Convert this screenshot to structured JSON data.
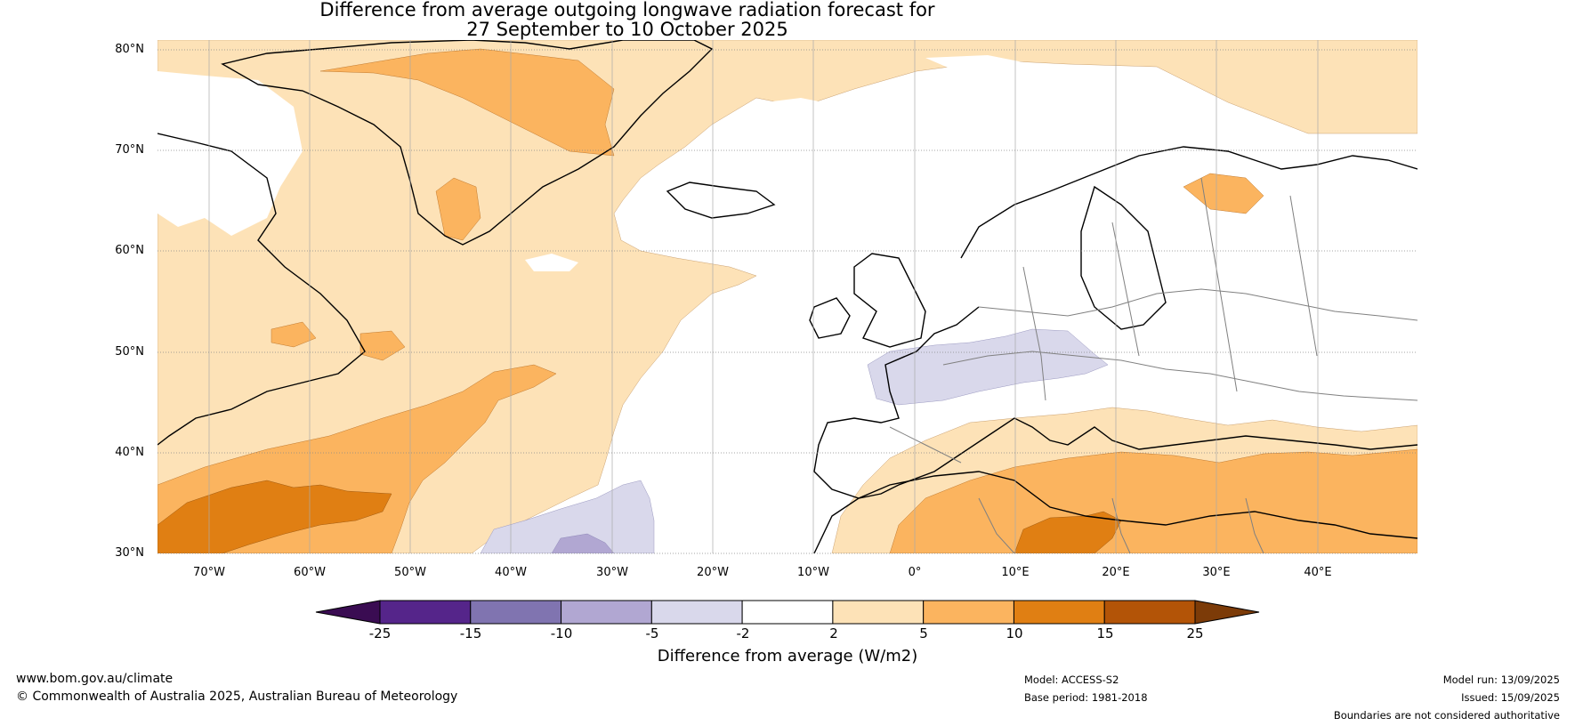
{
  "title": {
    "line1": "Difference from average outgoing longwave radiation forecast for",
    "line2": "27 September to 10 October 2025"
  },
  "map": {
    "lat_labels": [
      "80°N",
      "70°N",
      "60°N",
      "50°N",
      "40°N",
      "30°N"
    ],
    "lon_labels": [
      "70°W",
      "60°W",
      "50°W",
      "40°W",
      "30°W",
      "20°W",
      "10°W",
      "0°",
      "10°E",
      "20°E",
      "30°E",
      "40°E"
    ]
  },
  "colorbar": {
    "ticks": [
      "-25",
      "-15",
      "-10",
      "-5",
      "-2",
      "2",
      "5",
      "10",
      "15",
      "25"
    ],
    "colors": [
      "#3a0c52",
      "#55258a",
      "#8074b0",
      "#b1a7d2",
      "#d9d8eb",
      "#ffffff",
      "#fde2b7",
      "#fbb45f",
      "#e07f13",
      "#b35407",
      "#7c3b08"
    ],
    "label": "Difference from average (W/m2)"
  },
  "footer": {
    "website": "www.bom.gov.au/climate",
    "copyright": "© Commonwealth of Australia 2025, Australian Bureau of Meteorology",
    "model": "Model: ACCESS-S2",
    "base_period": "Base period: 1981-2018",
    "model_run": "Model run: 13/09/2025",
    "issued": "Issued: 15/09/2025",
    "disclaimer": "Boundaries are not considered authoritative"
  }
}
